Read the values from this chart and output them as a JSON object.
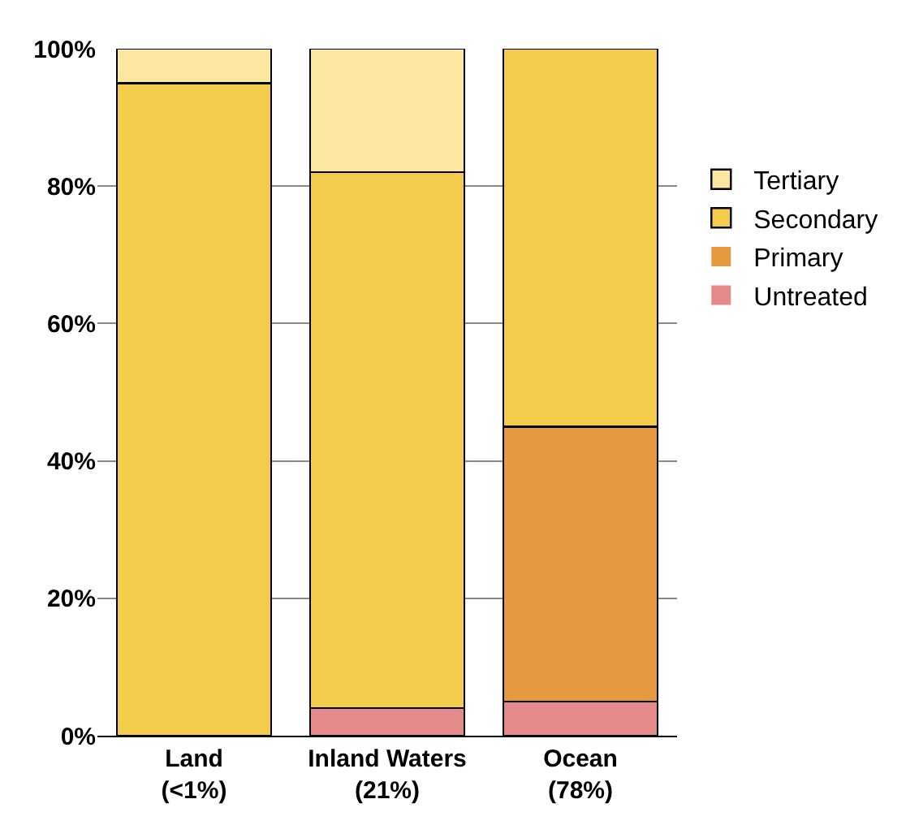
{
  "chart_data": {
    "type": "bar",
    "stacked": true,
    "categories": [
      "Land\n(<1%)",
      "Inland Waters\n(21%)",
      "Ocean\n(78%)"
    ],
    "series": [
      {
        "name": "Untreated",
        "color": "#e58a8a",
        "values": [
          0,
          4,
          5
        ]
      },
      {
        "name": "Primary",
        "color": "#e59a40",
        "values": [
          0,
          0,
          40
        ]
      },
      {
        "name": "Secondary",
        "color": "#f2cc4a",
        "values": [
          95,
          78,
          55
        ]
      },
      {
        "name": "Tertiary",
        "color": "#fbe7a0",
        "values": [
          5,
          18,
          0
        ]
      }
    ],
    "ylim": [
      0,
      100
    ],
    "yticks": [
      {
        "value": 0,
        "label": "0%"
      },
      {
        "value": 20,
        "label": "20%"
      },
      {
        "value": 40,
        "label": "40%"
      },
      {
        "value": 60,
        "label": "60%"
      },
      {
        "value": 80,
        "label": "80%"
      },
      {
        "value": 100,
        "label": "100%"
      }
    ],
    "grid": "y",
    "legend": "right"
  }
}
